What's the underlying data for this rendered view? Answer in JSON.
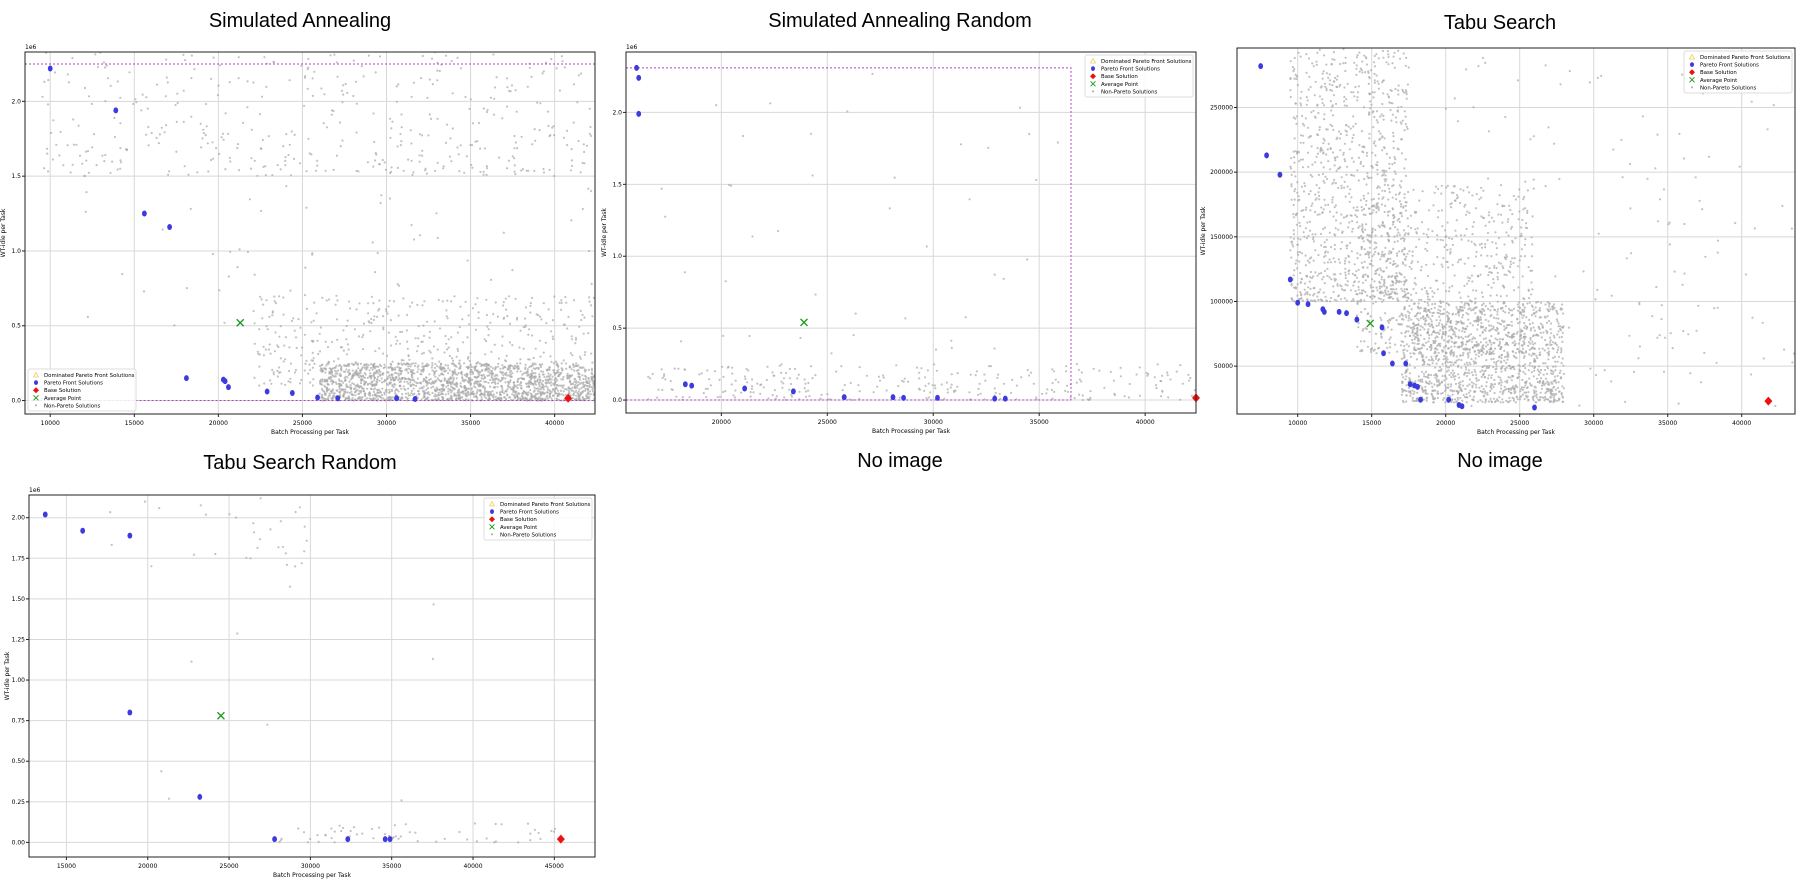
{
  "legend_labels": [
    "Dominated Pareto Front Solutions",
    "Pareto Front Solutions",
    "Base Solution",
    "Average Point",
    "Non-Pareto Solutions"
  ],
  "colors": {
    "pareto": "#3b3bdf",
    "base": "#ee1111",
    "average": "#1c9a1c",
    "nonpareto": "#a8a8a8",
    "dominated": "#f0d060",
    "box": "#b040c8",
    "grid": "#d8d8d8"
  },
  "placeholders": [
    {
      "label": "No image"
    },
    {
      "label": "No image"
    }
  ],
  "chart_data": [
    {
      "type": "scatter",
      "title": "Simulated Annealing",
      "xlabel": "Batch Processing per Task",
      "ylabel": "WT-idle per Task",
      "xlim": [
        8500,
        42400
      ],
      "ylim": [
        -90000,
        2330000
      ],
      "y_exponent_label": "1e6",
      "xticks": [
        10000,
        15000,
        20000,
        25000,
        30000,
        35000,
        40000
      ],
      "xtick_labels": [
        "10000",
        "15000",
        "20000",
        "25000",
        "30000",
        "35000",
        "40000"
      ],
      "yticks": [
        0,
        500000,
        1000000,
        1500000,
        2000000
      ],
      "ytick_labels": [
        "0.0",
        "0.5",
        "1.0",
        "1.5",
        "2.0"
      ],
      "legend_position": "lower-left",
      "pareto_front": [
        [
          10000,
          2220000
        ],
        [
          13900,
          1940000
        ],
        [
          15600,
          1250000
        ],
        [
          17100,
          1160000
        ],
        [
          18100,
          150000
        ],
        [
          20300,
          140000
        ],
        [
          20400,
          130000
        ],
        [
          20600,
          90000
        ],
        [
          22900,
          60000
        ],
        [
          24400,
          50000
        ],
        [
          25900,
          20000
        ],
        [
          27100,
          15000
        ],
        [
          30600,
          15000
        ],
        [
          31700,
          10000
        ]
      ],
      "base_solution": [
        40800,
        15000
      ],
      "average_point": [
        21300,
        520000
      ],
      "dominated_box": {
        "x": [
          8500,
          42400
        ],
        "y": [
          0,
          2250000
        ]
      },
      "non_pareto_cloud": [
        {
          "x": [
            9500,
            42400
          ],
          "y": [
            1500000,
            2330000
          ],
          "count": 420
        },
        {
          "x": [
            12000,
            42400
          ],
          "y": [
            500000,
            1600000
          ],
          "count": 70
        },
        {
          "x": [
            22000,
            42400
          ],
          "y": [
            100000,
            700000
          ],
          "count": 500
        },
        {
          "x": [
            26000,
            42400
          ],
          "y": [
            0,
            250000
          ],
          "count": 1700
        }
      ]
    },
    {
      "type": "scatter",
      "title": "Simulated Annealing Random",
      "xlabel": "Batch Processing per Task",
      "ylabel": "WT-idle per Task",
      "xlim": [
        15500,
        42400
      ],
      "ylim": [
        -90000,
        2420000
      ],
      "y_exponent_label": "1e6",
      "xticks": [
        20000,
        25000,
        30000,
        35000,
        40000
      ],
      "xtick_labels": [
        "20000",
        "25000",
        "30000",
        "35000",
        "40000"
      ],
      "yticks": [
        0,
        500000,
        1000000,
        1500000,
        2000000
      ],
      "ytick_labels": [
        "0.0",
        "0.5",
        "1.0",
        "1.5",
        "2.0"
      ],
      "legend_position": "upper-right",
      "pareto_front": [
        [
          16000,
          2310000
        ],
        [
          16100,
          2240000
        ],
        [
          16100,
          1990000
        ],
        [
          18300,
          110000
        ],
        [
          18600,
          100000
        ],
        [
          21100,
          80000
        ],
        [
          23400,
          60000
        ],
        [
          25800,
          20000
        ],
        [
          28100,
          20000
        ],
        [
          28600,
          15000
        ],
        [
          30200,
          15000
        ],
        [
          32900,
          10000
        ],
        [
          33400,
          10000
        ]
      ],
      "base_solution": [
        42400,
        15000
      ],
      "average_point": [
        23900,
        540000
      ],
      "dominated_box": {
        "x": [
          15500,
          36500
        ],
        "y": [
          0,
          2310000
        ]
      },
      "non_pareto_cloud": [
        {
          "x": [
            17000,
            36000
          ],
          "y": [
            150000,
            2400000
          ],
          "count": 45
        },
        {
          "x": [
            16500,
            42400
          ],
          "y": [
            0,
            250000
          ],
          "count": 280
        }
      ]
    },
    {
      "type": "scatter",
      "title": "Tabu Search",
      "xlabel": "Batch Processing per Task",
      "ylabel": "WT-idle per Task",
      "xlim": [
        5900,
        43600
      ],
      "ylim": [
        13000,
        296000
      ],
      "y_exponent_label": "",
      "xticks": [
        10000,
        15000,
        20000,
        25000,
        30000,
        35000,
        40000
      ],
      "xtick_labels": [
        "10000",
        "15000",
        "20000",
        "25000",
        "30000",
        "35000",
        "40000"
      ],
      "yticks": [
        50000,
        100000,
        150000,
        200000,
        250000
      ],
      "ytick_labels": [
        "50000",
        "100000",
        "150000",
        "200000",
        "250000"
      ],
      "legend_position": "upper-right",
      "pareto_front": [
        [
          7500,
          282000
        ],
        [
          7900,
          213000
        ],
        [
          8800,
          198000
        ],
        [
          9500,
          117000
        ],
        [
          10000,
          99000
        ],
        [
          10700,
          98000
        ],
        [
          11700,
          94000
        ],
        [
          11800,
          92000
        ],
        [
          12800,
          92000
        ],
        [
          13300,
          91000
        ],
        [
          14000,
          86000
        ],
        [
          15700,
          80000
        ],
        [
          15800,
          60000
        ],
        [
          16400,
          52000
        ],
        [
          17300,
          52000
        ],
        [
          17600,
          36000
        ],
        [
          17900,
          35000
        ],
        [
          18100,
          34000
        ],
        [
          18300,
          24000
        ],
        [
          20200,
          24000
        ],
        [
          20900,
          20000
        ],
        [
          21100,
          19000
        ],
        [
          26000,
          18000
        ]
      ],
      "base_solution": [
        41800,
        23000
      ],
      "average_point": [
        14900,
        83000
      ],
      "non_pareto_cloud": [
        {
          "x": [
            9500,
            17500
          ],
          "y": [
            100000,
            296000
          ],
          "count": 1000
        },
        {
          "x": [
            14000,
            26000
          ],
          "y": [
            60000,
            190000
          ],
          "count": 700
        },
        {
          "x": [
            17000,
            28000
          ],
          "y": [
            22000,
            100000
          ],
          "count": 1300
        },
        {
          "x": [
            20000,
            43600
          ],
          "y": [
            18000,
            290000
          ],
          "count": 160
        }
      ]
    },
    {
      "type": "scatter",
      "title": "Tabu Search Random",
      "xlabel": "Batch Processing per Task",
      "ylabel": "WT-idle per Task",
      "xlim": [
        12700,
        47500
      ],
      "ylim": [
        -90000,
        2140000
      ],
      "y_exponent_label": "1e6",
      "xticks": [
        15000,
        20000,
        25000,
        30000,
        35000,
        40000,
        45000
      ],
      "xtick_labels": [
        "15000",
        "20000",
        "25000",
        "30000",
        "35000",
        "40000",
        "45000"
      ],
      "yticks": [
        0,
        250000,
        500000,
        750000,
        1000000,
        1250000,
        1500000,
        1750000,
        2000000
      ],
      "ytick_labels": [
        "0.00",
        "0.25",
        "0.50",
        "0.75",
        "1.00",
        "1.25",
        "1.50",
        "1.75",
        "2.00"
      ],
      "legend_position": "upper-right",
      "pareto_front": [
        [
          13700,
          2020000
        ],
        [
          16000,
          1920000
        ],
        [
          18900,
          1890000
        ],
        [
          18900,
          800000
        ],
        [
          23200,
          280000
        ],
        [
          27800,
          20000
        ],
        [
          32300,
          20000
        ],
        [
          34600,
          20000
        ],
        [
          34900,
          20000
        ]
      ],
      "base_solution": [
        45400,
        20000
      ],
      "average_point": [
        24500,
        780000
      ],
      "non_pareto_cloud": [
        {
          "x": [
            17000,
            30000
          ],
          "y": [
            1700000,
            2140000
          ],
          "count": 30
        },
        {
          "x": [
            19500,
            40000
          ],
          "y": [
            200000,
            1800000
          ],
          "count": 10
        },
        {
          "x": [
            28000,
            46000
          ],
          "y": [
            0,
            120000
          ],
          "count": 60
        }
      ]
    }
  ]
}
